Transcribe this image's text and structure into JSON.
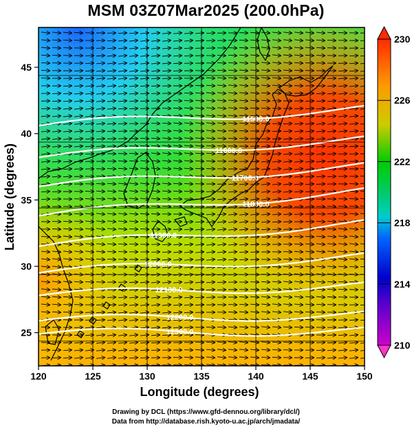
{
  "title": "MSM 03Z07Mar2025 (200.0hPa)",
  "x_axis": {
    "label": "Longitude (degrees)",
    "ticks": [
      "120",
      "125",
      "130",
      "135",
      "140",
      "145",
      "150"
    ]
  },
  "y_axis": {
    "label": "Latitude  (degrees)",
    "ticks": [
      "25",
      "30",
      "35",
      "40",
      "45"
    ]
  },
  "colorbar": {
    "ticks": [
      "230",
      "226",
      "222",
      "218",
      "214",
      "210"
    ]
  },
  "contour_labels": [
    "11500.0",
    "11600.0",
    "11700.0",
    "11800.0",
    "11900.0",
    "12000.0",
    "12100.0",
    "12200.0",
    "12300.0"
  ],
  "credits": {
    "line1": "Drawing by DCL (https://www.gfd-dennou.org/library/dcl/)",
    "line2": "Data from http://database.rish.kyoto-u.ac.jp/arch/jmadata/"
  },
  "chart_data": {
    "type": "heatmap",
    "title": "MSM 03Z07Mar2025 (200.0hPa)",
    "xlabel": "Longitude (degrees)",
    "ylabel": "Latitude  (degrees)",
    "xlim": [
      120,
      150
    ],
    "ylim": [
      22.5,
      48
    ],
    "x_ticks": [
      120,
      125,
      130,
      135,
      140,
      145,
      150
    ],
    "y_ticks": [
      25,
      30,
      35,
      40,
      45
    ],
    "color_scale": {
      "min": 210,
      "max": 230,
      "ticks": [
        210,
        214,
        218,
        222,
        226,
        230
      ]
    },
    "colors": {
      "low": "#cc00cc",
      "cold": "#0000cc",
      "cool": "#00cccc",
      "mid": "#00cc33",
      "warm": "#dddd00",
      "high": "#ff0000"
    },
    "contours": [
      {
        "label": "11500.0",
        "lat_at_120": 40.6,
        "lat_at_150": 41.9
      },
      {
        "label": "11600.0",
        "lat_at_120": 38.2,
        "lat_at_150": 39.6
      },
      {
        "label": "11700.0",
        "lat_at_120": 36.0,
        "lat_at_150": 37.6
      },
      {
        "label": "11800.0",
        "lat_at_120": 33.8,
        "lat_at_150": 35.7
      },
      {
        "label": "11900.0",
        "lat_at_120": 31.5,
        "lat_at_150": 33.3
      },
      {
        "label": "12000.0",
        "lat_at_120": 29.5,
        "lat_at_150": 30.8
      },
      {
        "label": "12100.0",
        "lat_at_120": 27.8,
        "lat_at_150": 28.6
      },
      {
        "label": "12200.0",
        "lat_at_120": 25.9,
        "lat_at_150": 26.4
      },
      {
        "label": "12300.0",
        "lat_at_120": 24.9,
        "lat_at_150": 25.2
      }
    ],
    "wind_vectors": "uniform westerly flow"
  }
}
